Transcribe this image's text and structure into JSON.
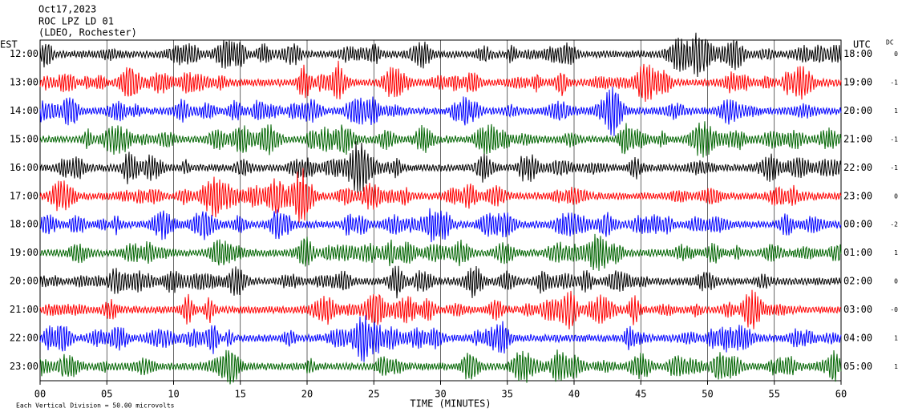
{
  "chart_data": {
    "type": "helicorder",
    "title_lines": [
      "Oct17,2023",
      "ROC LPZ LD 01",
      "(LDEO, Rochester)"
    ],
    "left_axis_label": "EST",
    "right_axis_label": "UTC",
    "dc_label": "DC",
    "xlabel": "TIME (MINUTES)",
    "footnote": "Each Vertical Division =   50.00 microvolts",
    "xlim": [
      0,
      60
    ],
    "xticks": [
      {
        "value": 0,
        "label": "00"
      },
      {
        "value": 5,
        "label": "05"
      },
      10,
      15,
      20,
      25,
      30,
      35,
      40,
      45,
      50,
      55,
      60
    ],
    "rows": [
      {
        "est": "12:00",
        "utc": "18:00",
        "dc": "0",
        "color": "#000000"
      },
      {
        "est": "13:00",
        "utc": "19:00",
        "dc": "-1",
        "color": "#ff0000"
      },
      {
        "est": "14:00",
        "utc": "20:00",
        "dc": "1",
        "color": "#0000ff"
      },
      {
        "est": "15:00",
        "utc": "21:00",
        "dc": "-1",
        "color": "#006400"
      },
      {
        "est": "16:00",
        "utc": "22:00",
        "dc": "-1",
        "color": "#000000"
      },
      {
        "est": "17:00",
        "utc": "23:00",
        "dc": "0",
        "color": "#ff0000"
      },
      {
        "est": "18:00",
        "utc": "00:00",
        "dc": "-2",
        "color": "#0000ff"
      },
      {
        "est": "19:00",
        "utc": "01:00",
        "dc": "1",
        "color": "#006400"
      },
      {
        "est": "20:00",
        "utc": "02:00",
        "dc": "0",
        "color": "#000000"
      },
      {
        "est": "21:00",
        "utc": "03:00",
        "dc": "-0",
        "color": "#ff0000"
      },
      {
        "est": "22:00",
        "utc": "04:00",
        "dc": "1",
        "color": "#0000ff"
      },
      {
        "est": "23:00",
        "utc": "05:00",
        "dc": "1",
        "color": "#006400"
      }
    ]
  }
}
